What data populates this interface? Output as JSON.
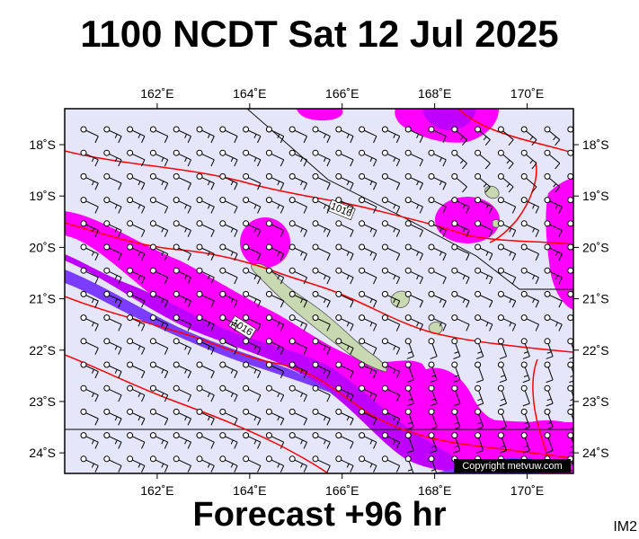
{
  "title": "1100 NCDT Sat 12 Jul 2025",
  "footer": "Forecast +96 hr",
  "product_code": "IM2",
  "copyright": "Copyright metvuw.com",
  "map": {
    "lon_range": [
      160.0,
      171.0
    ],
    "lat_range": [
      -24.4,
      -17.3
    ],
    "lon_ticks": [
      162,
      164,
      166,
      168,
      170
    ],
    "lon_tick_labels": [
      "162˚E",
      "164˚E",
      "166˚E",
      "168˚E",
      "170˚E"
    ],
    "lat_ticks": [
      -18,
      -19,
      -20,
      -21,
      -22,
      -23,
      -24
    ],
    "lat_tick_labels": [
      "18˚S",
      "19˚S",
      "20˚S",
      "21˚S",
      "22˚S",
      "23˚S",
      "24˚S"
    ],
    "isobar_labels": [
      "1016",
      "1016"
    ],
    "colors": {
      "background": "#e6e6fa",
      "rain_light": "#ff00ff",
      "rain_medium": "#c000ff",
      "rain_heavy": "#7b3cff",
      "isobar": "#ff0000",
      "land": "#c8d8b0"
    }
  }
}
